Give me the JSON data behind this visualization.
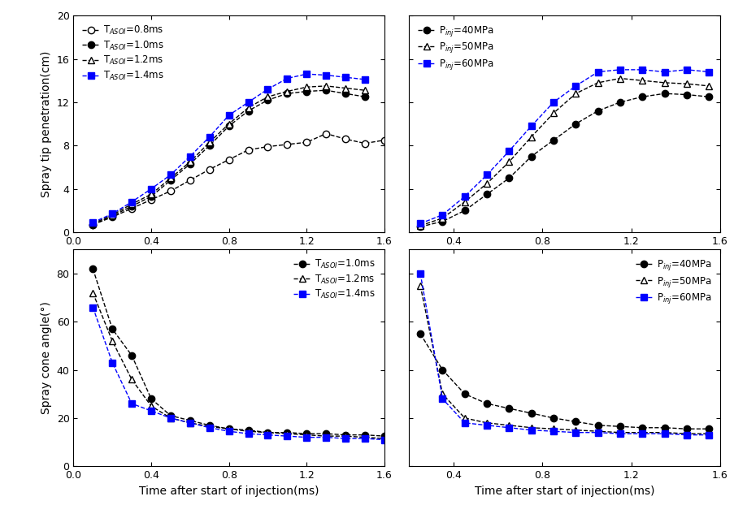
{
  "top_left": {
    "ylabel": "Spray tip penetration(cm)",
    "xlabel": "Time after start of injection(ms)",
    "xlim": [
      0.0,
      1.6
    ],
    "ylim": [
      0,
      20
    ],
    "xticks": [
      0.0,
      0.4,
      0.8,
      1.2,
      1.6
    ],
    "yticks": [
      0,
      4,
      8,
      12,
      16,
      20
    ],
    "series": [
      {
        "label": "T_{ASOI}=0.8ms",
        "color": "black",
        "marker": "o",
        "markerfacecolor": "white",
        "linestyle": "--",
        "x": [
          0.1,
          0.2,
          0.3,
          0.4,
          0.5,
          0.6,
          0.7,
          0.8,
          0.9,
          1.0,
          1.1,
          1.2,
          1.3,
          1.4,
          1.5,
          1.6
        ],
        "y": [
          0.7,
          1.4,
          2.2,
          3.0,
          3.8,
          4.8,
          5.8,
          6.7,
          7.6,
          7.9,
          8.1,
          8.3,
          9.1,
          8.6,
          8.2,
          8.5
        ]
      },
      {
        "label": "T_{ASOI}=1.0ms",
        "color": "black",
        "marker": "o",
        "markerfacecolor": "black",
        "linestyle": "--",
        "x": [
          0.1,
          0.2,
          0.3,
          0.4,
          0.5,
          0.6,
          0.7,
          0.8,
          0.9,
          1.0,
          1.1,
          1.2,
          1.3,
          1.4,
          1.5
        ],
        "y": [
          0.7,
          1.5,
          2.4,
          3.3,
          4.8,
          6.3,
          8.0,
          9.8,
          11.2,
          12.2,
          12.8,
          13.0,
          13.1,
          12.8,
          12.5
        ]
      },
      {
        "label": "T_{ASOI}=1.2ms",
        "color": "black",
        "marker": "^",
        "markerfacecolor": "white",
        "linestyle": "--",
        "x": [
          0.1,
          0.2,
          0.3,
          0.4,
          0.5,
          0.6,
          0.7,
          0.8,
          0.9,
          1.0,
          1.1,
          1.2,
          1.3,
          1.4,
          1.5
        ],
        "y": [
          0.8,
          1.6,
          2.6,
          3.5,
          5.0,
          6.5,
          8.3,
          10.0,
          11.5,
          12.5,
          13.0,
          13.4,
          13.5,
          13.3,
          13.1
        ]
      },
      {
        "label": "T_{ASOI}=1.4ms",
        "color": "blue",
        "marker": "s",
        "markerfacecolor": "blue",
        "linestyle": "--",
        "x": [
          0.1,
          0.2,
          0.3,
          0.4,
          0.5,
          0.6,
          0.7,
          0.8,
          0.9,
          1.0,
          1.1,
          1.2,
          1.3,
          1.4,
          1.5
        ],
        "y": [
          0.9,
          1.7,
          2.8,
          4.0,
          5.3,
          7.0,
          8.8,
          10.8,
          12.0,
          13.2,
          14.2,
          14.6,
          14.5,
          14.3,
          14.1
        ]
      }
    ]
  },
  "top_right": {
    "ylabel": "",
    "xlabel": "Time after start of injection(ms)",
    "xlim": [
      0.2,
      1.6
    ],
    "ylim": [
      0,
      20
    ],
    "xticks": [
      0.4,
      0.8,
      1.2,
      1.6
    ],
    "yticks": [
      0,
      4,
      8,
      12,
      16,
      20
    ],
    "series": [
      {
        "label": "P_{inj}=40MPa",
        "color": "black",
        "marker": "o",
        "markerfacecolor": "black",
        "linestyle": "--",
        "x": [
          0.25,
          0.35,
          0.45,
          0.55,
          0.65,
          0.75,
          0.85,
          0.95,
          1.05,
          1.15,
          1.25,
          1.35,
          1.45,
          1.55
        ],
        "y": [
          0.5,
          1.0,
          2.0,
          3.5,
          5.0,
          7.0,
          8.5,
          10.0,
          11.2,
          12.0,
          12.5,
          12.8,
          12.7,
          12.5
        ]
      },
      {
        "label": "P_{inj}=50MPa",
        "color": "black",
        "marker": "^",
        "markerfacecolor": "white",
        "linestyle": "--",
        "x": [
          0.25,
          0.35,
          0.45,
          0.55,
          0.65,
          0.75,
          0.85,
          0.95,
          1.05,
          1.15,
          1.25,
          1.35,
          1.45,
          1.55
        ],
        "y": [
          0.6,
          1.3,
          2.8,
          4.5,
          6.5,
          8.8,
          11.0,
          12.8,
          13.8,
          14.2,
          14.0,
          13.8,
          13.7,
          13.5
        ]
      },
      {
        "label": "P_{inj}=60MPa",
        "color": "blue",
        "marker": "s",
        "markerfacecolor": "blue",
        "linestyle": "--",
        "x": [
          0.25,
          0.35,
          0.45,
          0.55,
          0.65,
          0.75,
          0.85,
          0.95,
          1.05,
          1.15,
          1.25,
          1.35,
          1.45,
          1.55
        ],
        "y": [
          0.8,
          1.6,
          3.3,
          5.3,
          7.5,
          9.8,
          12.0,
          13.5,
          14.8,
          15.0,
          15.0,
          14.8,
          15.0,
          14.8
        ]
      }
    ]
  },
  "bottom_left": {
    "ylabel": "Spray cone angle(°)",
    "xlabel": "Time after start of injection(ms)",
    "xlim": [
      0.0,
      1.6
    ],
    "ylim": [
      0,
      90
    ],
    "xticks": [
      0.0,
      0.4,
      0.8,
      1.2,
      1.6
    ],
    "yticks": [
      0,
      20,
      40,
      60,
      80
    ],
    "series": [
      {
        "label": "T_{ASOI}=1.0ms",
        "color": "black",
        "marker": "o",
        "markerfacecolor": "black",
        "linestyle": "--",
        "x": [
          0.1,
          0.2,
          0.3,
          0.4,
          0.5,
          0.6,
          0.7,
          0.8,
          0.9,
          1.0,
          1.1,
          1.2,
          1.3,
          1.4,
          1.5,
          1.6
        ],
        "y": [
          82,
          57,
          46,
          28,
          21,
          19,
          17,
          15.5,
          15,
          14,
          14,
          13.5,
          13.5,
          13.0,
          13.0,
          12.5
        ]
      },
      {
        "label": "T_{ASOI}=1.2ms",
        "color": "black",
        "marker": "^",
        "markerfacecolor": "white",
        "linestyle": "--",
        "x": [
          0.1,
          0.2,
          0.3,
          0.4,
          0.5,
          0.6,
          0.7,
          0.8,
          0.9,
          1.0,
          1.1,
          1.2,
          1.3,
          1.4,
          1.5,
          1.6
        ],
        "y": [
          72,
          52,
          36,
          25,
          20,
          18,
          16.5,
          15.5,
          14.5,
          14,
          13.5,
          13.0,
          12.5,
          12.5,
          12.0,
          11.5
        ]
      },
      {
        "label": "T_{ASOI}=1.4ms",
        "color": "blue",
        "marker": "s",
        "markerfacecolor": "blue",
        "linestyle": "--",
        "x": [
          0.1,
          0.2,
          0.3,
          0.4,
          0.5,
          0.6,
          0.7,
          0.8,
          0.9,
          1.0,
          1.1,
          1.2,
          1.3,
          1.4,
          1.5,
          1.6
        ],
        "y": [
          66,
          43,
          26,
          23,
          20,
          18,
          16,
          14.5,
          13.5,
          13.0,
          12.5,
          12.0,
          12.0,
          11.5,
          11.5,
          11.0
        ]
      }
    ]
  },
  "bottom_right": {
    "ylabel": "",
    "xlabel": "Time after start of injection(ms)",
    "xlim": [
      0.2,
      1.6
    ],
    "ylim": [
      0,
      90
    ],
    "xticks": [
      0.4,
      0.8,
      1.2,
      1.6
    ],
    "yticks": [
      0,
      20,
      40,
      60,
      80
    ],
    "series": [
      {
        "label": "P_{inj}=40MPa",
        "color": "black",
        "marker": "o",
        "markerfacecolor": "black",
        "linestyle": "--",
        "x": [
          0.25,
          0.35,
          0.45,
          0.55,
          0.65,
          0.75,
          0.85,
          0.95,
          1.05,
          1.15,
          1.25,
          1.35,
          1.45,
          1.55
        ],
        "y": [
          55,
          40,
          30,
          26,
          24,
          22,
          20,
          18.5,
          17,
          16.5,
          16,
          16,
          15.5,
          15.5
        ]
      },
      {
        "label": "P_{inj}=50MPa",
        "color": "black",
        "marker": "^",
        "markerfacecolor": "white",
        "linestyle": "--",
        "x": [
          0.25,
          0.35,
          0.45,
          0.55,
          0.65,
          0.75,
          0.85,
          0.95,
          1.05,
          1.15,
          1.25,
          1.35,
          1.45,
          1.55
        ],
        "y": [
          75,
          30,
          20,
          18,
          17,
          16,
          15.5,
          15,
          14.5,
          14,
          14,
          14,
          13.5,
          13.5
        ]
      },
      {
        "label": "P_{inj}=60MPa",
        "color": "blue",
        "marker": "s",
        "markerfacecolor": "blue",
        "linestyle": "--",
        "x": [
          0.25,
          0.35,
          0.45,
          0.55,
          0.65,
          0.75,
          0.85,
          0.95,
          1.05,
          1.15,
          1.25,
          1.35,
          1.45,
          1.55
        ],
        "y": [
          80,
          28,
          18,
          17,
          16,
          15,
          14.5,
          14,
          14,
          13.5,
          13.5,
          13.5,
          13.0,
          13.0
        ]
      }
    ]
  },
  "legend_label_map": {
    "T_{ASOI}=0.8ms": "T$_{ASOI}$=0.8ms",
    "T_{ASOI}=1.0ms": "T$_{ASOI}$=1.0ms",
    "T_{ASOI}=1.2ms": "T$_{ASOI}$=1.2ms",
    "T_{ASOI}=1.4ms": "T$_{ASOI}$=1.4ms",
    "P_{inj}=40MPa": "P$_{inj}$=40MPa",
    "P_{inj}=50MPa": "P$_{inj}$=50MPa",
    "P_{inj}=60MPa": "P$_{inj}$=60MPa"
  }
}
